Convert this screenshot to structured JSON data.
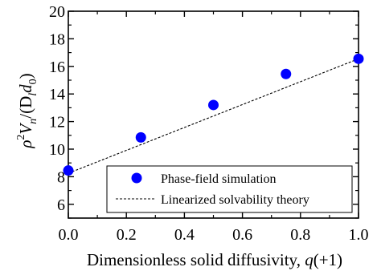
{
  "chart_data": {
    "type": "scatter",
    "xlabel_prefix": "Dimensionless solid diffusivity, ",
    "xlabel_var": "q",
    "xlabel_suffix": "(+1)",
    "ylabel_parts": {
      "rho": "ρ",
      "rho_sup": "2",
      "v": "V",
      "v_sub": "n",
      "mid": "/(D",
      "d_sub": "l",
      "d": "d",
      "d0_sub": "0",
      "close": ")"
    },
    "xlim": [
      0.0,
      1.0
    ],
    "ylim": [
      5,
      20
    ],
    "xticks": [
      0.0,
      0.2,
      0.4,
      0.6,
      0.8,
      1.0
    ],
    "xtick_labels": [
      "0.0",
      "0.2",
      "0.4",
      "0.6",
      "0.8",
      "1.0"
    ],
    "yticks": [
      6,
      8,
      10,
      12,
      14,
      16,
      18,
      20
    ],
    "ytick_labels": [
      "6",
      "8",
      "10",
      "12",
      "14",
      "16",
      "18",
      "20"
    ],
    "grid": false,
    "legend_position": "bottom-right",
    "series": [
      {
        "name": "Phase-field simulation",
        "kind": "scatter",
        "color": "#0000ff",
        "x": [
          0.0,
          0.25,
          0.5,
          0.75,
          1.0
        ],
        "y": [
          8.45,
          10.85,
          13.2,
          15.45,
          16.55
        ]
      },
      {
        "name": "Linearized solvability theory",
        "kind": "line",
        "style": "dashed",
        "color": "#000000",
        "x": [
          0.0,
          1.0
        ],
        "y": [
          8.25,
          16.55
        ]
      }
    ]
  }
}
